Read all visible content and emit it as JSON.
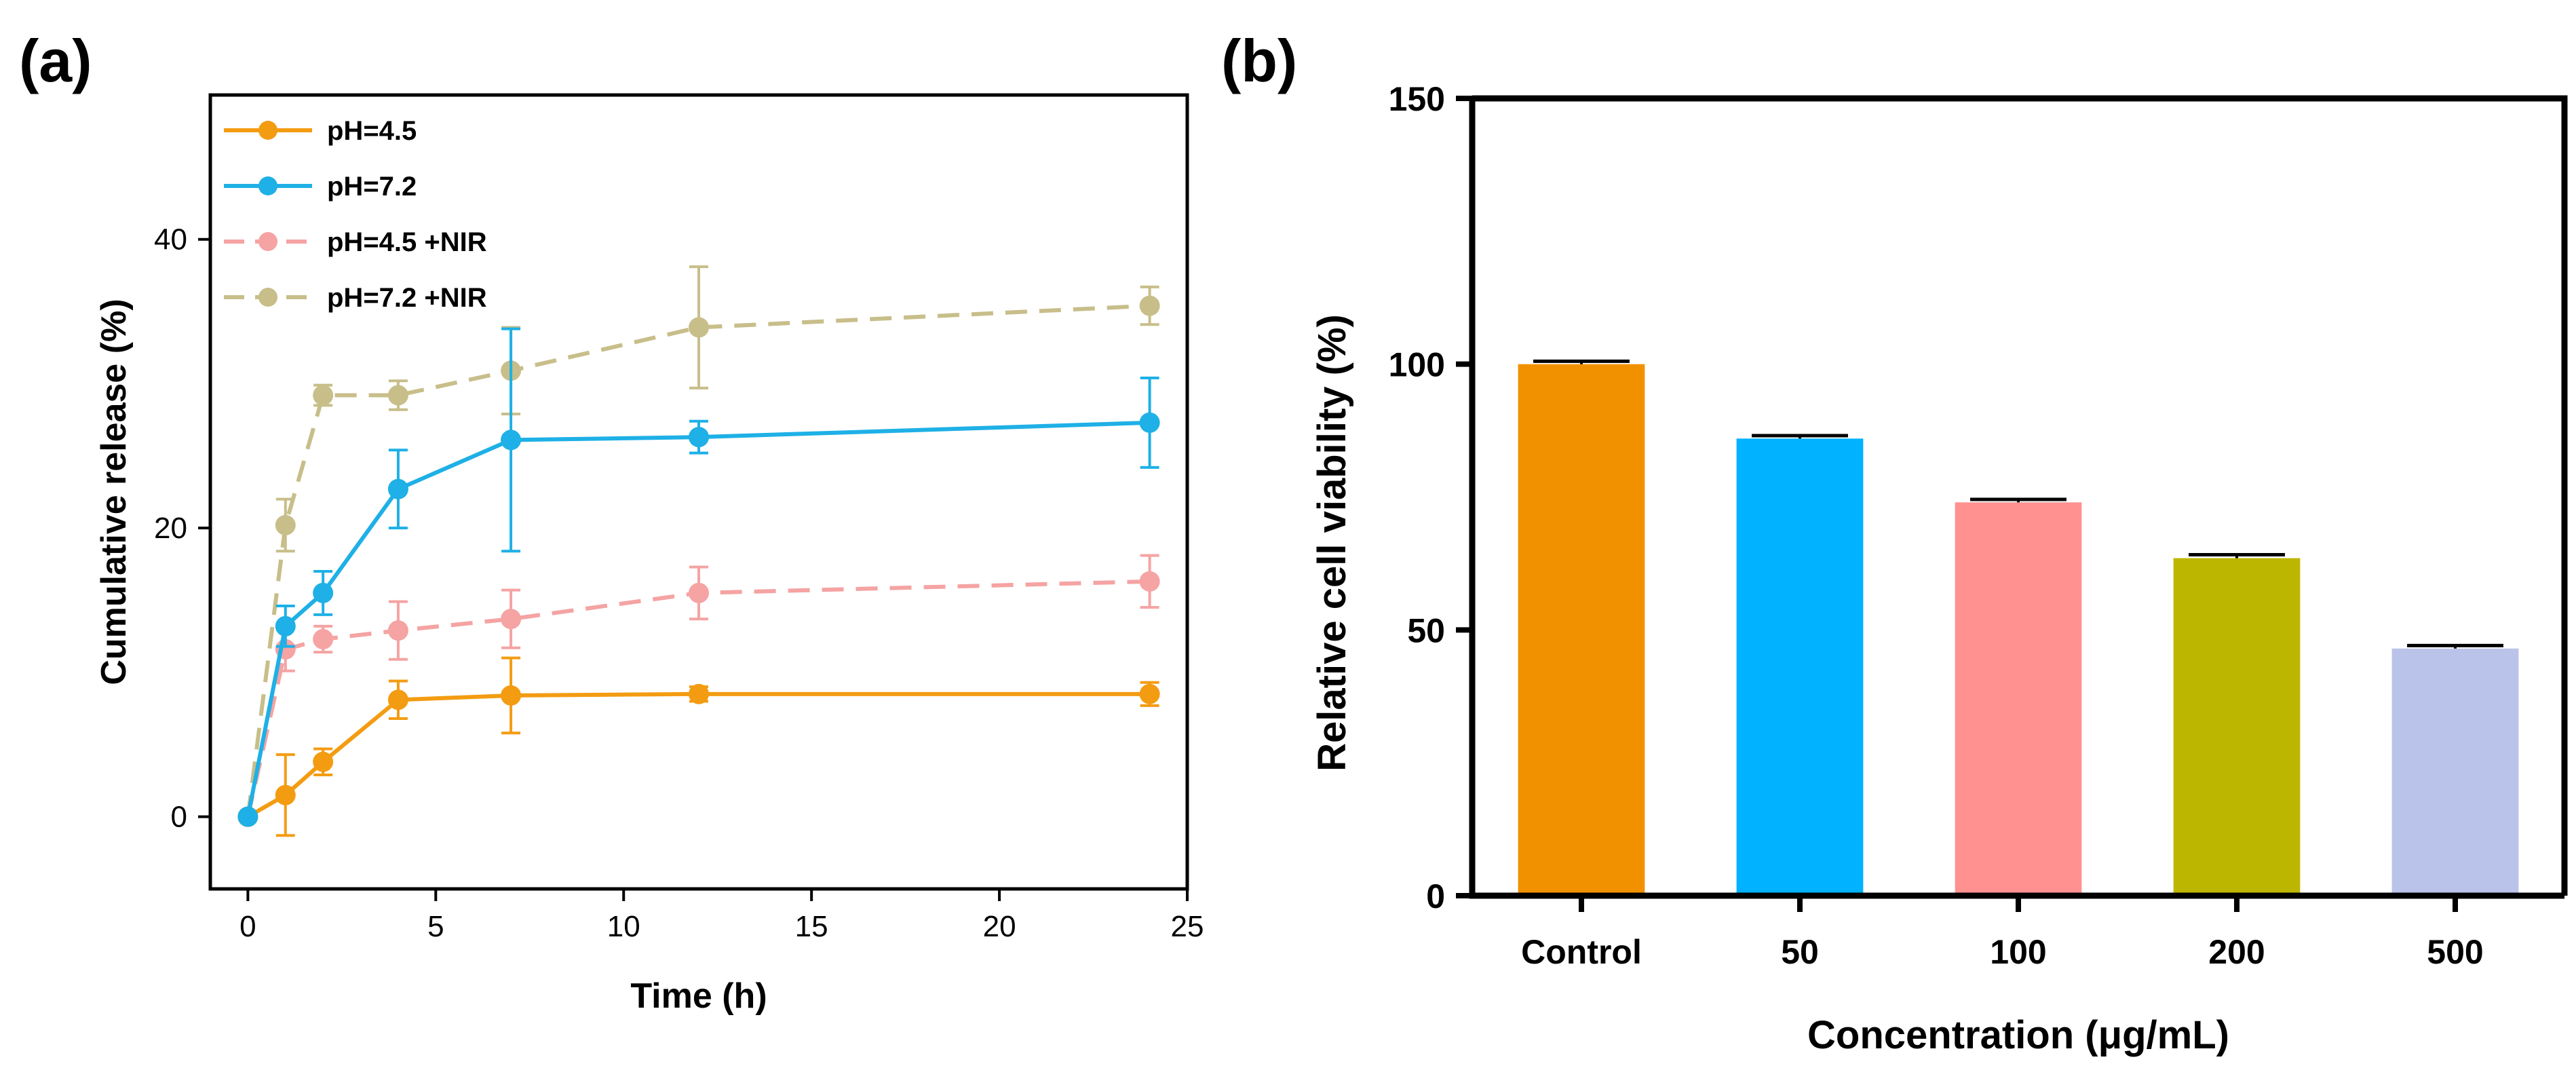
{
  "chart_data": [
    {
      "type": "line",
      "panel_label": "(a)",
      "xlabel": "Time (h)",
      "ylabel": "Cumulative release (%)",
      "xlim": [
        -1,
        25
      ],
      "ylim": [
        -5,
        50
      ],
      "xticks": [
        0,
        5,
        10,
        15,
        20,
        25
      ],
      "yticks": [
        0,
        20,
        40
      ],
      "grid": false,
      "legend_position": "top-left",
      "x": [
        0,
        1,
        2,
        4,
        7,
        12,
        24
      ],
      "series": [
        {
          "name": "pH=4.5",
          "color": "#F39C12",
          "dashed": false,
          "values": [
            0,
            1.5,
            3.8,
            8.1,
            8.4,
            8.5,
            8.5
          ],
          "errors": [
            0,
            2.8,
            0.9,
            1.3,
            2.6,
            0.5,
            0.8
          ]
        },
        {
          "name": "pH=7.2",
          "color": "#1EB0E6",
          "dashed": false,
          "values": [
            0,
            13.2,
            15.5,
            22.7,
            26.1,
            26.3,
            27.3
          ],
          "errors": [
            0,
            1.4,
            1.5,
            2.7,
            7.7,
            1.1,
            3.1
          ]
        },
        {
          "name": "pH=4.5 +NIR",
          "color": "#F5A3A3",
          "dashed": true,
          "values": [
            0,
            11.6,
            12.3,
            12.9,
            13.7,
            15.5,
            16.3
          ],
          "errors": [
            0,
            1.5,
            0.9,
            2.0,
            2.0,
            1.8,
            1.8
          ]
        },
        {
          "name": "pH=7.2 +NIR",
          "color": "#C8BE8A",
          "dashed": true,
          "values": [
            0,
            20.2,
            29.2,
            29.2,
            30.9,
            33.9,
            35.4
          ],
          "errors": [
            0,
            1.8,
            0.7,
            1.0,
            3.0,
            4.2,
            1.3
          ]
        }
      ]
    },
    {
      "type": "bar",
      "panel_label": "(b)",
      "xlabel": "Concentration (μg/mL)",
      "ylabel": "Relative cell viability (%)",
      "ylim": [
        0,
        150
      ],
      "yticks": [
        0,
        50,
        100,
        150
      ],
      "grid": false,
      "categories": [
        "Control",
        "50",
        "100",
        "200",
        "500"
      ],
      "values": [
        100,
        86,
        74,
        63.5,
        46.5
      ],
      "errors": [
        0.3,
        0.3,
        0.3,
        0.4,
        0.3
      ],
      "colors": [
        "#F29100",
        "#00B2FF",
        "#FF9191",
        "#BDB600",
        "#BAC4EA"
      ]
    }
  ]
}
